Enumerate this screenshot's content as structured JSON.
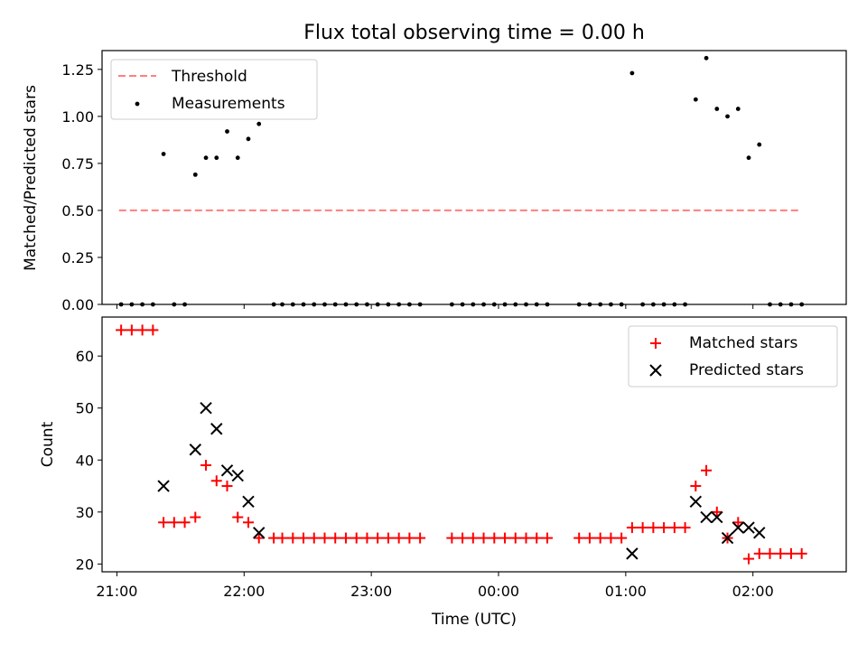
{
  "figure": {
    "title": "Flux total observing time = 0.00 h",
    "xlabel": "Time (UTC)",
    "colors": {
      "threshold": "#ff7f7f",
      "measurements": "#000000",
      "matched": "#ff0000",
      "predicted": "#000000"
    }
  },
  "chart_data": [
    {
      "type": "scatter",
      "title": "Flux total observing time = 0.00 h",
      "xlabel": "",
      "ylabel": "Matched/Predicted stars",
      "ylim": [
        0,
        1.35
      ],
      "yticks": [
        0,
        0.25,
        0.5,
        0.75,
        1.0,
        1.25
      ],
      "yticklabels": [
        "0.00",
        "0.25",
        "0.50",
        "0.75",
        "1.00",
        "1.25"
      ],
      "xlim": [
        "20:53",
        "02:44"
      ],
      "xticks": [
        "21:00",
        "22:00",
        "23:00",
        "00:00",
        "01:00",
        "02:00"
      ],
      "legend": "upper-left",
      "legend_entries": [
        "Threshold",
        "Measurements"
      ],
      "series": [
        {
          "name": "Threshold",
          "kind": "dashed-line",
          "x": [
            "21:01",
            "02:23"
          ],
          "y": [
            0.5,
            0.5
          ]
        },
        {
          "name": "Measurements",
          "kind": "points",
          "points": [
            [
              "21:02",
              0
            ],
            [
              "21:07",
              0
            ],
            [
              "21:12",
              0
            ],
            [
              "21:17",
              0
            ],
            [
              "21:22",
              0.8
            ],
            [
              "21:27",
              0
            ],
            [
              "21:32",
              0
            ],
            [
              "21:37",
              0.69
            ],
            [
              "21:42",
              0.78
            ],
            [
              "21:47",
              0.78
            ],
            [
              "21:52",
              0.92
            ],
            [
              "21:57",
              0.78
            ],
            [
              "22:02",
              0.88
            ],
            [
              "22:07",
              0.96
            ],
            [
              "22:14",
              0
            ],
            [
              "22:18",
              0
            ],
            [
              "22:23",
              0
            ],
            [
              "22:28",
              0
            ],
            [
              "22:33",
              0
            ],
            [
              "22:38",
              0
            ],
            [
              "22:43",
              0
            ],
            [
              "22:48",
              0
            ],
            [
              "22:53",
              0
            ],
            [
              "22:58",
              0
            ],
            [
              "23:03",
              0
            ],
            [
              "23:08",
              0
            ],
            [
              "23:13",
              0
            ],
            [
              "23:18",
              0
            ],
            [
              "23:23",
              0
            ],
            [
              "23:38",
              0
            ],
            [
              "23:43",
              0
            ],
            [
              "23:48",
              0
            ],
            [
              "23:53",
              0
            ],
            [
              "23:58",
              0
            ],
            [
              "00:03",
              0
            ],
            [
              "00:08",
              0
            ],
            [
              "00:13",
              0
            ],
            [
              "00:18",
              0
            ],
            [
              "00:23",
              0
            ],
            [
              "00:38",
              0
            ],
            [
              "00:43",
              0
            ],
            [
              "00:48",
              0
            ],
            [
              "00:53",
              0
            ],
            [
              "00:58",
              0
            ],
            [
              "01:03",
              1.23
            ],
            [
              "01:08",
              0
            ],
            [
              "01:13",
              0
            ],
            [
              "01:18",
              0
            ],
            [
              "01:23",
              0
            ],
            [
              "01:28",
              0
            ],
            [
              "01:33",
              1.09
            ],
            [
              "01:38",
              1.31
            ],
            [
              "01:43",
              1.04
            ],
            [
              "01:48",
              1.0
            ],
            [
              "01:53",
              1.04
            ],
            [
              "01:58",
              0.78
            ],
            [
              "02:03",
              0.85
            ],
            [
              "02:08",
              0
            ],
            [
              "02:13",
              0
            ],
            [
              "02:18",
              0
            ],
            [
              "02:23",
              0
            ]
          ]
        }
      ]
    },
    {
      "type": "scatter",
      "title": "",
      "xlabel": "Time (UTC)",
      "ylabel": "Count",
      "ylim": [
        18.5,
        67.5
      ],
      "yticks": [
        20,
        30,
        40,
        50,
        60
      ],
      "yticklabels": [
        "20",
        "30",
        "40",
        "50",
        "60"
      ],
      "xlim": [
        "20:53",
        "02:44"
      ],
      "xticks": [
        "21:00",
        "22:00",
        "23:00",
        "00:00",
        "01:00",
        "02:00"
      ],
      "xticklabels": [
        "21:00",
        "22:00",
        "23:00",
        "00:00",
        "01:00",
        "02:00"
      ],
      "legend": "upper-right",
      "legend_entries": [
        "Matched stars",
        "Predicted stars"
      ],
      "series": [
        {
          "name": "Matched stars",
          "kind": "plus",
          "points": [
            [
              "21:02",
              65
            ],
            [
              "21:07",
              65
            ],
            [
              "21:12",
              65
            ],
            [
              "21:17",
              65
            ],
            [
              "21:22",
              28
            ],
            [
              "21:27",
              28
            ],
            [
              "21:32",
              28
            ],
            [
              "21:37",
              29
            ],
            [
              "21:42",
              39
            ],
            [
              "21:47",
              36
            ],
            [
              "21:52",
              35
            ],
            [
              "21:57",
              29
            ],
            [
              "22:02",
              28
            ],
            [
              "22:07",
              25
            ],
            [
              "22:14",
              25
            ],
            [
              "22:18",
              25
            ],
            [
              "22:23",
              25
            ],
            [
              "22:28",
              25
            ],
            [
              "22:33",
              25
            ],
            [
              "22:38",
              25
            ],
            [
              "22:43",
              25
            ],
            [
              "22:48",
              25
            ],
            [
              "22:53",
              25
            ],
            [
              "22:58",
              25
            ],
            [
              "23:03",
              25
            ],
            [
              "23:08",
              25
            ],
            [
              "23:13",
              25
            ],
            [
              "23:18",
              25
            ],
            [
              "23:23",
              25
            ],
            [
              "23:38",
              25
            ],
            [
              "23:43",
              25
            ],
            [
              "23:48",
              25
            ],
            [
              "23:53",
              25
            ],
            [
              "23:58",
              25
            ],
            [
              "00:03",
              25
            ],
            [
              "00:08",
              25
            ],
            [
              "00:13",
              25
            ],
            [
              "00:18",
              25
            ],
            [
              "00:23",
              25
            ],
            [
              "00:38",
              25
            ],
            [
              "00:43",
              25
            ],
            [
              "00:48",
              25
            ],
            [
              "00:53",
              25
            ],
            [
              "00:58",
              25
            ],
            [
              "01:03",
              27
            ],
            [
              "01:08",
              27
            ],
            [
              "01:13",
              27
            ],
            [
              "01:18",
              27
            ],
            [
              "01:23",
              27
            ],
            [
              "01:28",
              27
            ],
            [
              "01:33",
              35
            ],
            [
              "01:38",
              38
            ],
            [
              "01:43",
              30
            ],
            [
              "01:48",
              25
            ],
            [
              "01:53",
              28
            ],
            [
              "01:58",
              21
            ],
            [
              "02:03",
              22
            ],
            [
              "02:08",
              22
            ],
            [
              "02:13",
              22
            ],
            [
              "02:18",
              22
            ],
            [
              "02:23",
              22
            ]
          ]
        },
        {
          "name": "Predicted stars",
          "kind": "cross",
          "points": [
            [
              "21:22",
              35
            ],
            [
              "21:37",
              42
            ],
            [
              "21:42",
              50
            ],
            [
              "21:47",
              46
            ],
            [
              "21:52",
              38
            ],
            [
              "21:57",
              37
            ],
            [
              "22:02",
              32
            ],
            [
              "22:07",
              26
            ],
            [
              "01:03",
              22
            ],
            [
              "01:33",
              32
            ],
            [
              "01:38",
              29
            ],
            [
              "01:43",
              29
            ],
            [
              "01:48",
              25
            ],
            [
              "01:53",
              27
            ],
            [
              "01:58",
              27
            ],
            [
              "02:03",
              26
            ]
          ]
        }
      ]
    }
  ]
}
